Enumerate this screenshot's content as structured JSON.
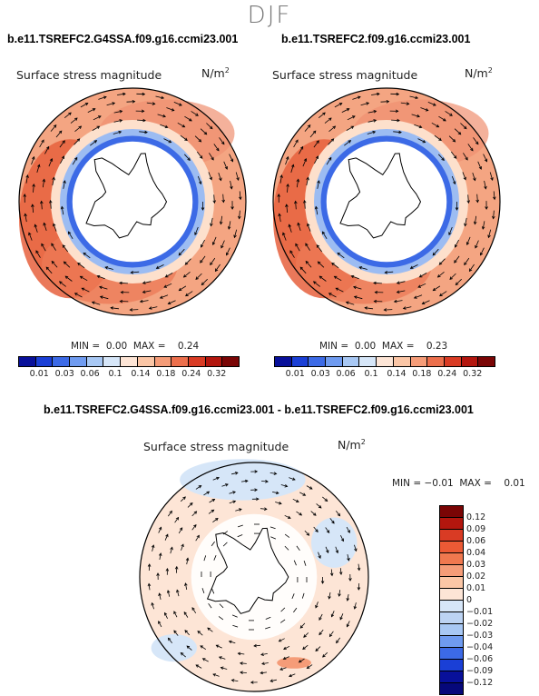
{
  "season": "DJF",
  "panels": [
    {
      "case": "b.e11.TSREFC2.G4SSA.f09.g16.ccmi23.001",
      "field": "Surface stress magnitude",
      "units_base": "N/m",
      "units_exp": "2",
      "min_label": "MIN =",
      "min_value": "0.00",
      "max_label": "MAX =",
      "max_value": "0.24"
    },
    {
      "case": "b.e11.TSREFC2.f09.g16.ccmi23.001",
      "field": "Surface stress magnitude",
      "units_base": "N/m",
      "units_exp": "2",
      "min_label": "MIN =",
      "min_value": "0.00",
      "max_label": "MAX =",
      "max_value": "0.23"
    },
    {
      "case": "b.e11.TSREFC2.G4SSA.f09.g16.ccmi23.001 - b.e11.TSREFC2.f09.g16.ccmi23.001",
      "field": "Surface stress magnitude",
      "units_base": "N/m",
      "units_exp": "2",
      "min_label": "MIN =",
      "min_value": "−0.01",
      "max_label": "MAX =",
      "max_value": "0.01"
    }
  ],
  "colorbar_abs": {
    "labels": [
      "0.01",
      "0.03",
      "0.06",
      "0.1",
      "0.14",
      "0.18",
      "0.24",
      "0.32"
    ],
    "colors": [
      "#08109a",
      "#1a3fd6",
      "#3c6ae6",
      "#6f9bf0",
      "#a8c8f4",
      "#d6e6f8",
      "#fde5d6",
      "#fbc6a6",
      "#f59c78",
      "#ec6f4c",
      "#d93b24",
      "#b3160e",
      "#7a0505"
    ]
  },
  "colorbar_diff": {
    "labels": [
      "0.12",
      "0.09",
      "0.06",
      "0.04",
      "0.03",
      "0.02",
      "0.01",
      "0",
      "−0.01",
      "−0.02",
      "−0.03",
      "−0.04",
      "−0.06",
      "−0.09",
      "−0.12"
    ],
    "colors": [
      "#7a0505",
      "#b3160e",
      "#d93b24",
      "#ec5a35",
      "#f0784f",
      "#f59c78",
      "#fbc6a6",
      "#fde5d6",
      "#d6e6f8",
      "#bcd3f3",
      "#a8c8f4",
      "#6f9bf0",
      "#3c6ae6",
      "#1a3fd6",
      "#08109a",
      "#06087a"
    ]
  }
}
